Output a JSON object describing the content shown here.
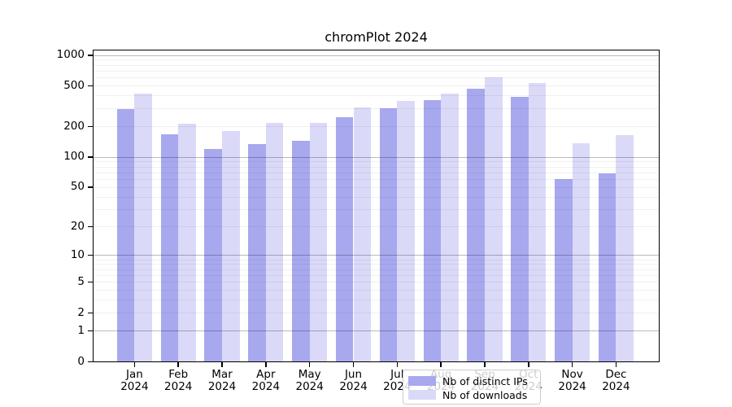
{
  "title": "chromPlot 2024",
  "colors": {
    "distinct_ips_bar": "#a8a8ef",
    "downloads_bar": "#dadaf8",
    "major_gridline": "#bdbdbd",
    "minor_gridline": "#f0f0f0",
    "axis_frame": "#000000",
    "legend_border": "#cccccc"
  },
  "legend": {
    "items": [
      {
        "label": "Nb of distinct IPs",
        "swatch": "distinct-ips-swatch"
      },
      {
        "label": "Nb of downloads",
        "swatch": "downloads-swatch"
      }
    ]
  },
  "y_axis": {
    "tick_labels": [
      "0",
      "1",
      "2",
      "5",
      "10",
      "20",
      "50",
      "100",
      "200",
      "500",
      "1000"
    ],
    "tick_values": [
      0,
      1,
      2,
      5,
      10,
      20,
      50,
      100,
      200,
      500,
      1000
    ],
    "major_gridline_values": [
      1,
      10,
      100,
      1000
    ],
    "minor_gridline_values": [
      2,
      3,
      4,
      5,
      6,
      7,
      8,
      9,
      20,
      30,
      40,
      50,
      60,
      70,
      80,
      90,
      200,
      300,
      400,
      500,
      600,
      700,
      800,
      900
    ]
  },
  "x_axis": {
    "month_labels": [
      "Jan",
      "Feb",
      "Mar",
      "Apr",
      "May",
      "Jun",
      "Jul",
      "Aug",
      "Sep",
      "Oct",
      "Nov",
      "Dec"
    ],
    "year_label": "2024"
  },
  "chart_data": {
    "type": "bar",
    "title": "chromPlot 2024",
    "xlabel": "",
    "ylabel": "",
    "yscale": "log1p",
    "ylim": [
      0,
      1110
    ],
    "grid": "on",
    "legend_position": "lower-center",
    "categories": [
      "Jan 2024",
      "Feb 2024",
      "Mar 2024",
      "Apr 2024",
      "May 2024",
      "Jun 2024",
      "Jul 2024",
      "Aug 2024",
      "Sep 2024",
      "Oct 2024",
      "Nov 2024",
      "Dec 2024"
    ],
    "series": [
      {
        "name": "Nb of distinct IPs",
        "color": "#a8a8ef",
        "values": [
          295,
          167,
          120,
          134,
          143,
          245,
          303,
          364,
          467,
          386,
          60,
          68
        ]
      },
      {
        "name": "Nb of downloads",
        "color": "#dadaf8",
        "values": [
          420,
          210,
          180,
          216,
          214,
          305,
          357,
          418,
          600,
          534,
          135,
          165
        ]
      }
    ]
  }
}
